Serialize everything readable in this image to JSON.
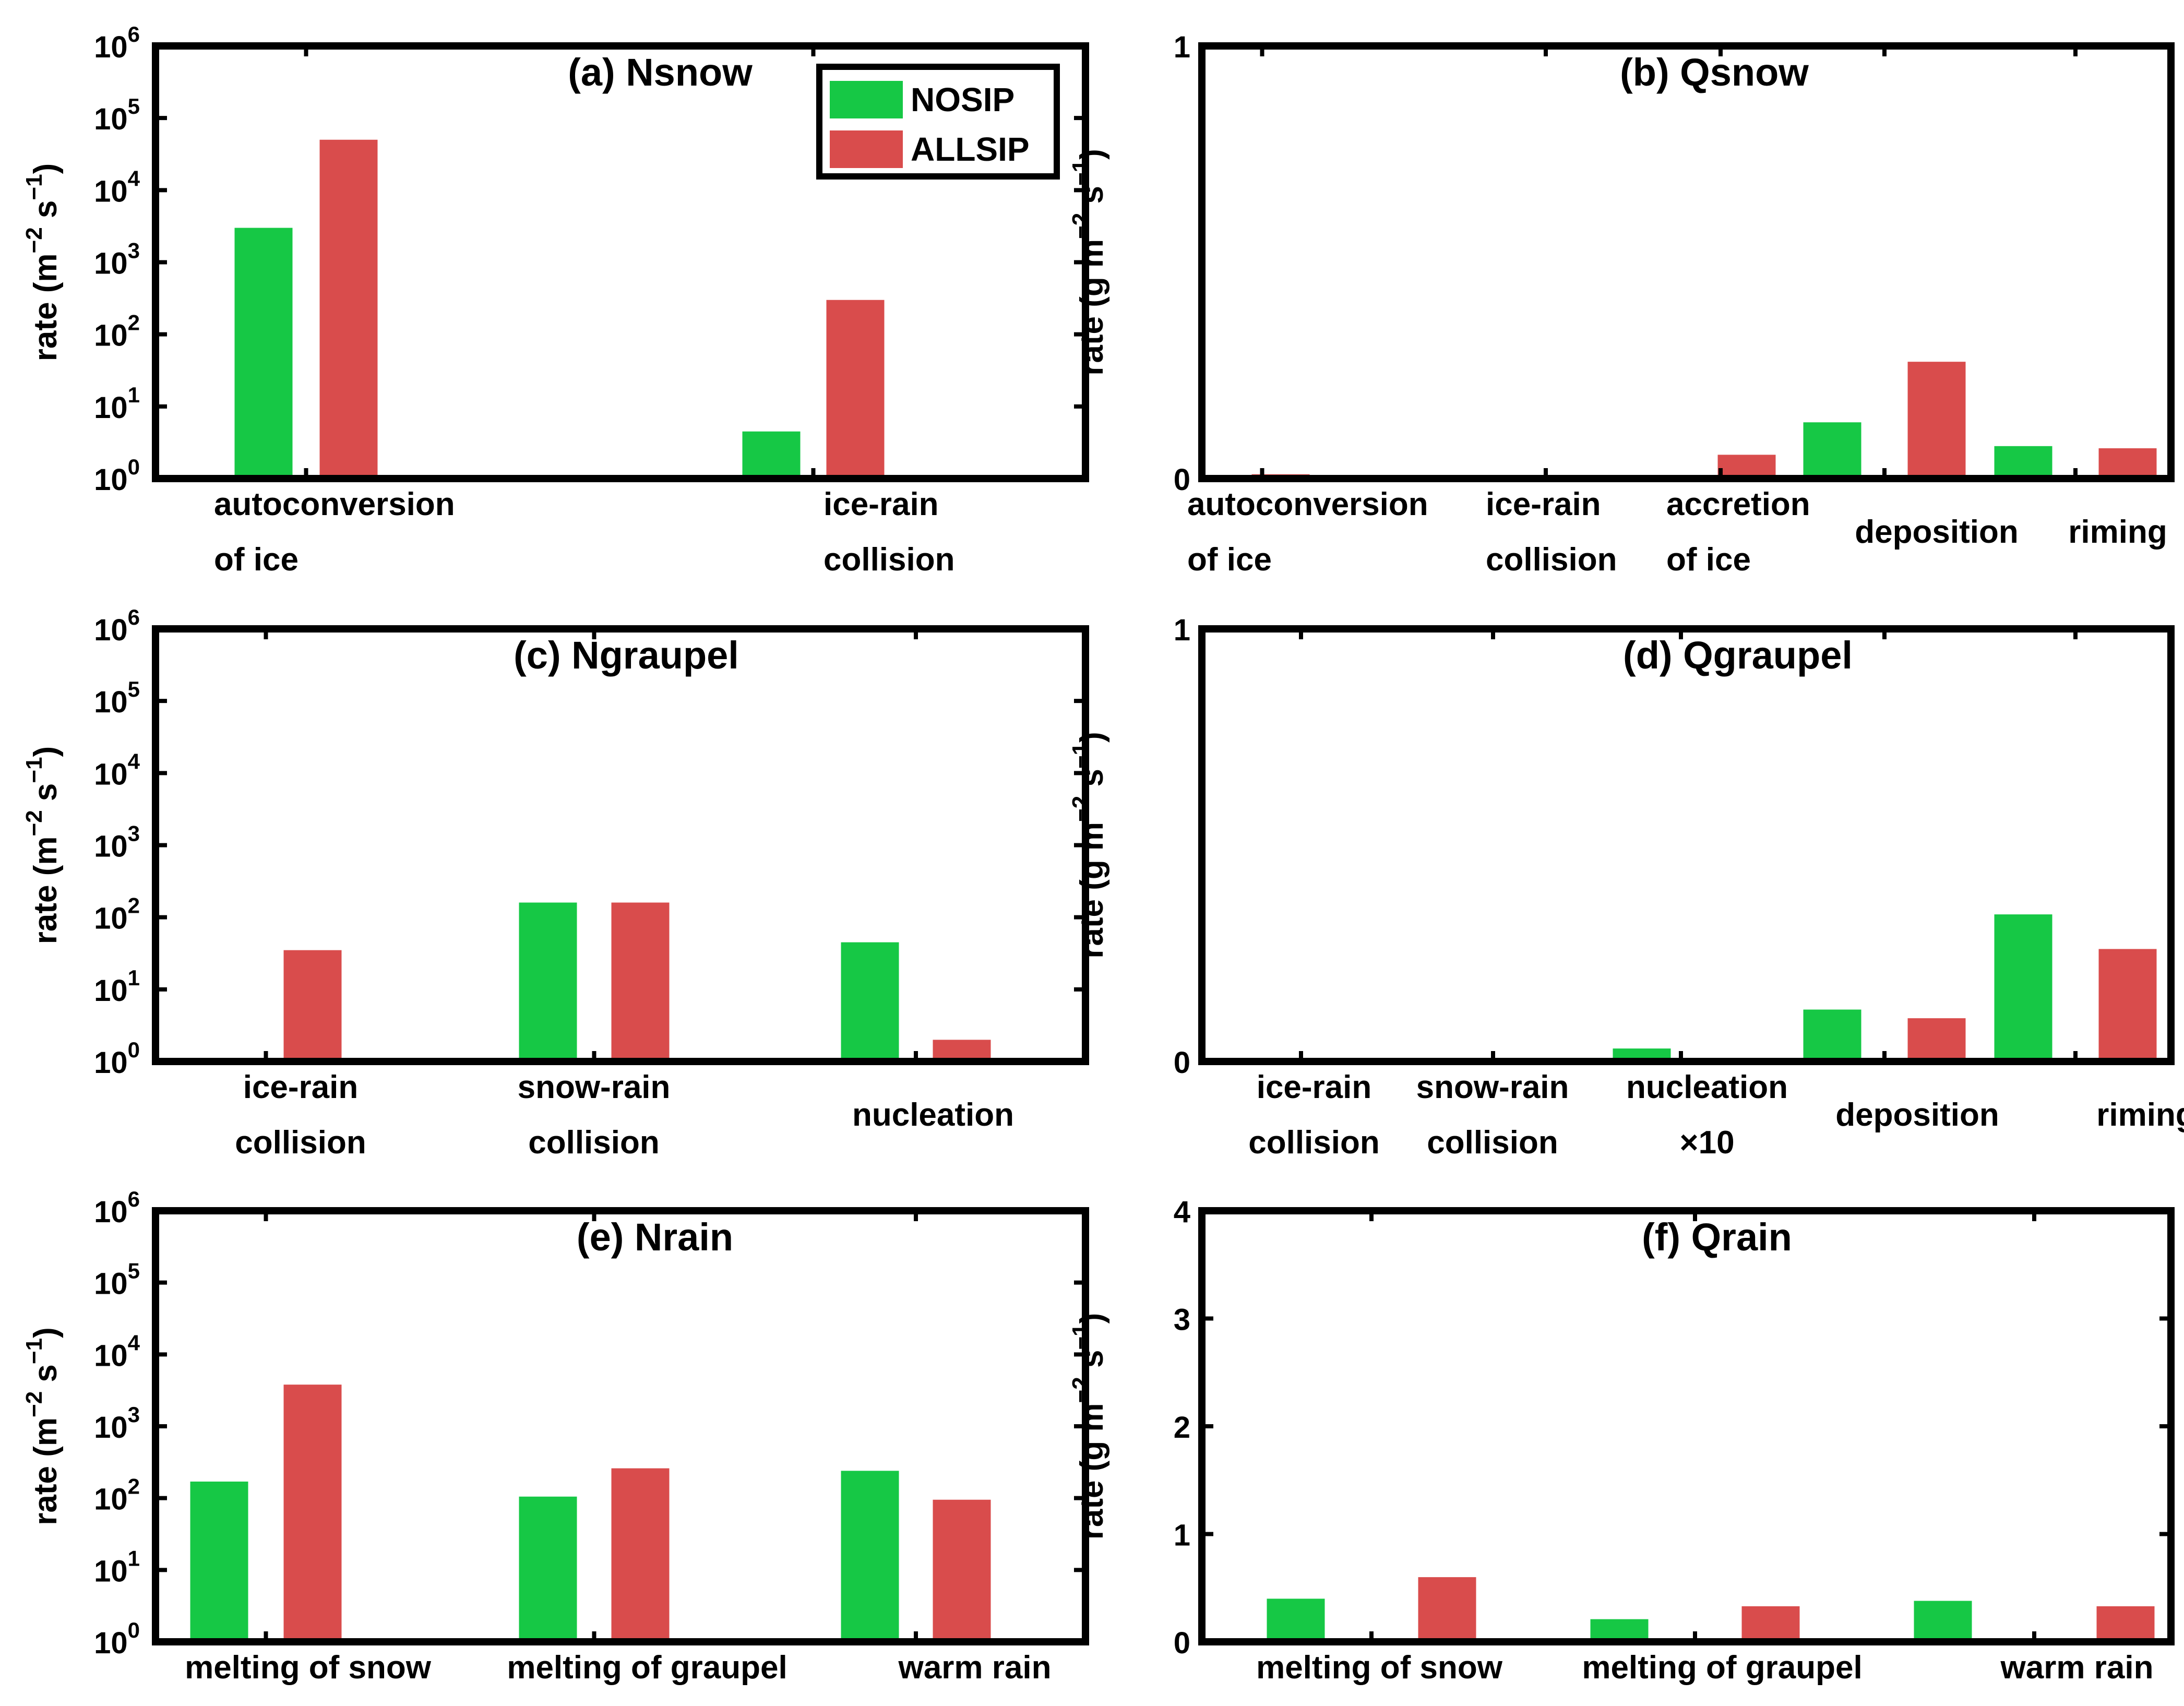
{
  "colors": {
    "nosip": "#16c845",
    "allsip": "#d94c4c",
    "axis": "#000000",
    "background": "#ffffff"
  },
  "legend": {
    "placement": "top-right",
    "items": [
      "NOSIP",
      "ALLSIP"
    ]
  },
  "chart_data": [
    {
      "type": "bar",
      "panel": "a",
      "title": "(a) Nsnow",
      "scale": "log",
      "ylim": [
        1,
        1000000
      ],
      "ylabel": {
        "main": "rate (m",
        "sup1": "−2",
        "mid": " s",
        "sup2": "−1",
        "end": ")"
      },
      "yticks": [
        {
          "v": 1,
          "b": "10",
          "e": "0"
        },
        {
          "v": 10,
          "b": "10",
          "e": "1"
        },
        {
          "v": 100,
          "b": "10",
          "e": "2"
        },
        {
          "v": 1000,
          "b": "10",
          "e": "3"
        },
        {
          "v": 10000,
          "b": "10",
          "e": "4"
        },
        {
          "v": 100000,
          "b": "10",
          "e": "5"
        },
        {
          "v": 1000000,
          "b": "10",
          "e": "6"
        }
      ],
      "categories": [
        [
          "autoconversion",
          "of ice"
        ],
        [
          "ice-rain",
          "collision"
        ]
      ],
      "cat_align": [
        "left",
        "left"
      ],
      "series": [
        {
          "name": "NOSIP",
          "values": [
            3000,
            4.5
          ]
        },
        {
          "name": "ALLSIP",
          "values": [
            50000,
            300
          ]
        }
      ]
    },
    {
      "type": "bar",
      "panel": "b",
      "title": "(b) Qsnow",
      "scale": "linear",
      "ylim": [
        0,
        1
      ],
      "ylabel": {
        "main": "rate (g m",
        "sup1": "−2",
        "mid": " s",
        "sup2": "−1",
        "end": ")"
      },
      "yticks": [
        {
          "v": 0,
          "t": "0"
        },
        {
          "v": 1,
          "t": "1"
        }
      ],
      "categories": [
        [
          "autoconversion",
          "of ice"
        ],
        [
          "ice-rain",
          "collision"
        ],
        [
          "accretion",
          "of ice"
        ],
        [
          "deposition"
        ],
        [
          "riming"
        ]
      ],
      "cat_align": [
        "left",
        "left",
        "left",
        "center",
        "center"
      ],
      "series": [
        {
          "name": "NOSIP",
          "values": [
            0,
            0,
            0,
            0.13,
            0.075
          ]
        },
        {
          "name": "ALLSIP",
          "values": [
            0.01,
            0,
            0.055,
            0.27,
            0.07
          ]
        }
      ]
    },
    {
      "type": "bar",
      "panel": "c",
      "title": "(c) Ngraupel",
      "scale": "log",
      "ylim": [
        1,
        1000000
      ],
      "ylabel": {
        "main": "rate (m",
        "sup1": "−2",
        "mid": " s",
        "sup2": "−1",
        "end": ")"
      },
      "yticks": [
        {
          "v": 1,
          "b": "10",
          "e": "0"
        },
        {
          "v": 10,
          "b": "10",
          "e": "1"
        },
        {
          "v": 100,
          "b": "10",
          "e": "2"
        },
        {
          "v": 1000,
          "b": "10",
          "e": "3"
        },
        {
          "v": 10000,
          "b": "10",
          "e": "4"
        },
        {
          "v": 100000,
          "b": "10",
          "e": "5"
        },
        {
          "v": 1000000,
          "b": "10",
          "e": "6"
        }
      ],
      "categories": [
        [
          "ice-rain",
          "collision"
        ],
        [
          "snow-rain",
          "collision"
        ],
        [
          "nucleation"
        ]
      ],
      "cat_align": [
        "center",
        "center",
        "center"
      ],
      "series": [
        {
          "name": "NOSIP",
          "values": [
            1,
            160,
            45
          ]
        },
        {
          "name": "ALLSIP",
          "values": [
            35,
            160,
            2
          ]
        }
      ]
    },
    {
      "type": "bar",
      "panel": "d",
      "title": "(d) Qgraupel",
      "scale": "linear",
      "ylim": [
        0,
        1
      ],
      "ylabel": {
        "main": "rate (g m",
        "sup1": "−2",
        "mid": " s",
        "sup2": "−1",
        "end": ")"
      },
      "yticks": [
        {
          "v": 0,
          "t": "0"
        },
        {
          "v": 1,
          "t": "1"
        }
      ],
      "categories": [
        [
          "ice-rain",
          "collision"
        ],
        [
          "snow-rain",
          "collision"
        ],
        [
          "nucleation",
          "×10"
        ],
        [
          "deposition"
        ],
        [
          "riming"
        ]
      ],
      "cat_align": [
        "center",
        "center",
        "center",
        "center",
        "center"
      ],
      "series": [
        {
          "name": "NOSIP",
          "values": [
            0.003,
            0.003,
            0.03,
            0.12,
            0.34
          ]
        },
        {
          "name": "ALLSIP",
          "values": [
            0.003,
            0.003,
            0.003,
            0.1,
            0.26
          ]
        }
      ]
    },
    {
      "type": "bar",
      "panel": "e",
      "title": "(e) Nrain",
      "scale": "log",
      "ylim": [
        1,
        1000000
      ],
      "ylabel": {
        "main": "rate (m",
        "sup1": "−2",
        "mid": " s",
        "sup2": "−1",
        "end": ")"
      },
      "yticks": [
        {
          "v": 1,
          "b": "10",
          "e": "0"
        },
        {
          "v": 10,
          "b": "10",
          "e": "1"
        },
        {
          "v": 100,
          "b": "10",
          "e": "2"
        },
        {
          "v": 1000,
          "b": "10",
          "e": "3"
        },
        {
          "v": 10000,
          "b": "10",
          "e": "4"
        },
        {
          "v": 100000,
          "b": "10",
          "e": "5"
        },
        {
          "v": 1000000,
          "b": "10",
          "e": "6"
        }
      ],
      "categories": [
        [
          "melting of snow"
        ],
        [
          "melting of graupel"
        ],
        [
          "warm rain"
        ]
      ],
      "cat_align": [
        "center",
        "center",
        "center"
      ],
      "series": [
        {
          "name": "NOSIP",
          "values": [
            170,
            105,
            240
          ]
        },
        {
          "name": "ALLSIP",
          "values": [
            3800,
            260,
            95
          ]
        }
      ]
    },
    {
      "type": "bar",
      "panel": "f",
      "title": "(f) Qrain",
      "scale": "linear",
      "ylim": [
        0,
        4
      ],
      "ylabel": {
        "main": "rate (g m",
        "sup1": "−2",
        "mid": " s",
        "sup2": "−1",
        "end": ")"
      },
      "yticks": [
        {
          "v": 0,
          "t": "0"
        },
        {
          "v": 1,
          "t": "1"
        },
        {
          "v": 2,
          "t": "2"
        },
        {
          "v": 3,
          "t": "3"
        },
        {
          "v": 4,
          "t": "4"
        }
      ],
      "categories": [
        [
          "melting of snow"
        ],
        [
          "melting of graupel"
        ],
        [
          "warm rain"
        ]
      ],
      "cat_align": [
        "center",
        "center",
        "center"
      ],
      "series": [
        {
          "name": "NOSIP",
          "values": [
            0.4,
            0.21,
            0.38
          ]
        },
        {
          "name": "ALLSIP",
          "values": [
            0.6,
            0.33,
            0.33
          ]
        }
      ]
    }
  ]
}
